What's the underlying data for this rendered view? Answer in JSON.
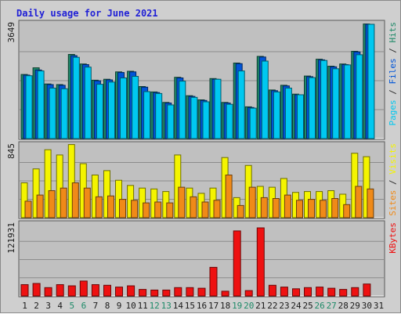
{
  "chart_data": {
    "type": "bar",
    "title": "Daily usage for June 2021",
    "days": [
      "1",
      "2",
      "3",
      "4",
      "5",
      "6",
      "7",
      "8",
      "9",
      "10",
      "11",
      "12",
      "13",
      "14",
      "15",
      "16",
      "17",
      "18",
      "19",
      "20",
      "21",
      "22",
      "23",
      "24",
      "25",
      "26",
      "27",
      "28",
      "29",
      "30",
      "31"
    ],
    "weekend_days": [
      "5",
      "6",
      "12",
      "13",
      "19",
      "20",
      "26",
      "27"
    ],
    "panels": [
      {
        "id": "hits-files-pages",
        "max_label": "3649",
        "ymax": 3649,
        "axis_label_parts": [
          {
            "text": "Pages",
            "color": "#00c8f0"
          },
          {
            "text": " / ",
            "color": "#2f2f2f"
          },
          {
            "text": "Files",
            "color": "#0055d8"
          },
          {
            "text": " / ",
            "color": "#2f2f2f"
          },
          {
            "text": "Hits",
            "color": "#1e8a68"
          }
        ],
        "series": [
          {
            "name": "Hits",
            "color": "#1e8a68",
            "values": [
              2020,
              2230,
              1720,
              1700,
              2650,
              2350,
              1840,
              1870,
              2100,
              2120,
              1640,
              1470,
              1140,
              1930,
              1350,
              1220,
              1890,
              1140,
              2380,
              1000,
              2590,
              1530,
              1680,
              1400,
              1970,
              2500,
              2280,
              2350,
              2750,
              3610,
              0
            ]
          },
          {
            "name": "Files",
            "color": "#0055d8",
            "values": [
              2000,
              2160,
              1700,
              1680,
              2610,
              2330,
              1820,
              1850,
              2080,
              2100,
              1620,
              1450,
              1120,
              1910,
              1330,
              1200,
              1870,
              1120,
              2360,
              980,
              2570,
              1510,
              1660,
              1380,
              1950,
              2480,
              2260,
              2330,
              2730,
              3600,
              0
            ]
          },
          {
            "name": "Pages",
            "color": "#00c8f0",
            "values": [
              1980,
              2130,
              1590,
              1570,
              2560,
              2250,
              1710,
              1780,
              1910,
              1960,
              1480,
              1420,
              1060,
              1810,
              1300,
              1160,
              1870,
              1080,
              2130,
              960,
              2440,
              1470,
              1590,
              1380,
              1920,
              2460,
              2200,
              2320,
              2640,
              3600,
              0
            ]
          }
        ]
      },
      {
        "id": "visits-sites",
        "max_label": "845",
        "ymax": 845,
        "axis_label_parts": [
          {
            "text": "Sites",
            "color": "#f08a18"
          },
          {
            "text": " / ",
            "color": "#2f2f2f"
          },
          {
            "text": "Visits",
            "color": "#f4f400"
          }
        ],
        "series": [
          {
            "name": "Visits",
            "color": "#f4f400",
            "values": [
              400,
              560,
              780,
              720,
              840,
              620,
              490,
              540,
              430,
              370,
              340,
              330,
              300,
              720,
              340,
              280,
              340,
              690,
              230,
              600,
              360,
              350,
              450,
              290,
              300,
              300,
              310,
              270,
              740,
              700,
              0
            ]
          },
          {
            "name": "Sites",
            "color": "#f08a18",
            "values": [
              190,
              260,
              310,
              340,
              400,
              340,
              240,
              250,
              210,
              200,
              170,
              180,
              170,
              350,
              240,
              180,
              200,
              490,
              140,
              350,
              230,
              220,
              260,
              200,
              210,
              200,
              220,
              150,
              360,
              330,
              0
            ]
          }
        ]
      },
      {
        "id": "kbytes",
        "max_label": "121931",
        "ymax": 121931,
        "axis_label_parts": [
          {
            "text": "KBytes",
            "color": "#ee1111"
          }
        ],
        "series": [
          {
            "name": "KBytes",
            "color": "#ee1111",
            "values": [
              19000,
              21000,
              14000,
              19000,
              17000,
              25000,
              19000,
              18000,
              15000,
              17000,
              11000,
              10000,
              10000,
              14000,
              14000,
              13000,
              48000,
              8000,
              109000,
              9000,
              114000,
              18000,
              15000,
              12000,
              14000,
              15000,
              13000,
              11000,
              14000,
              20000,
              0
            ]
          }
        ]
      }
    ]
  }
}
